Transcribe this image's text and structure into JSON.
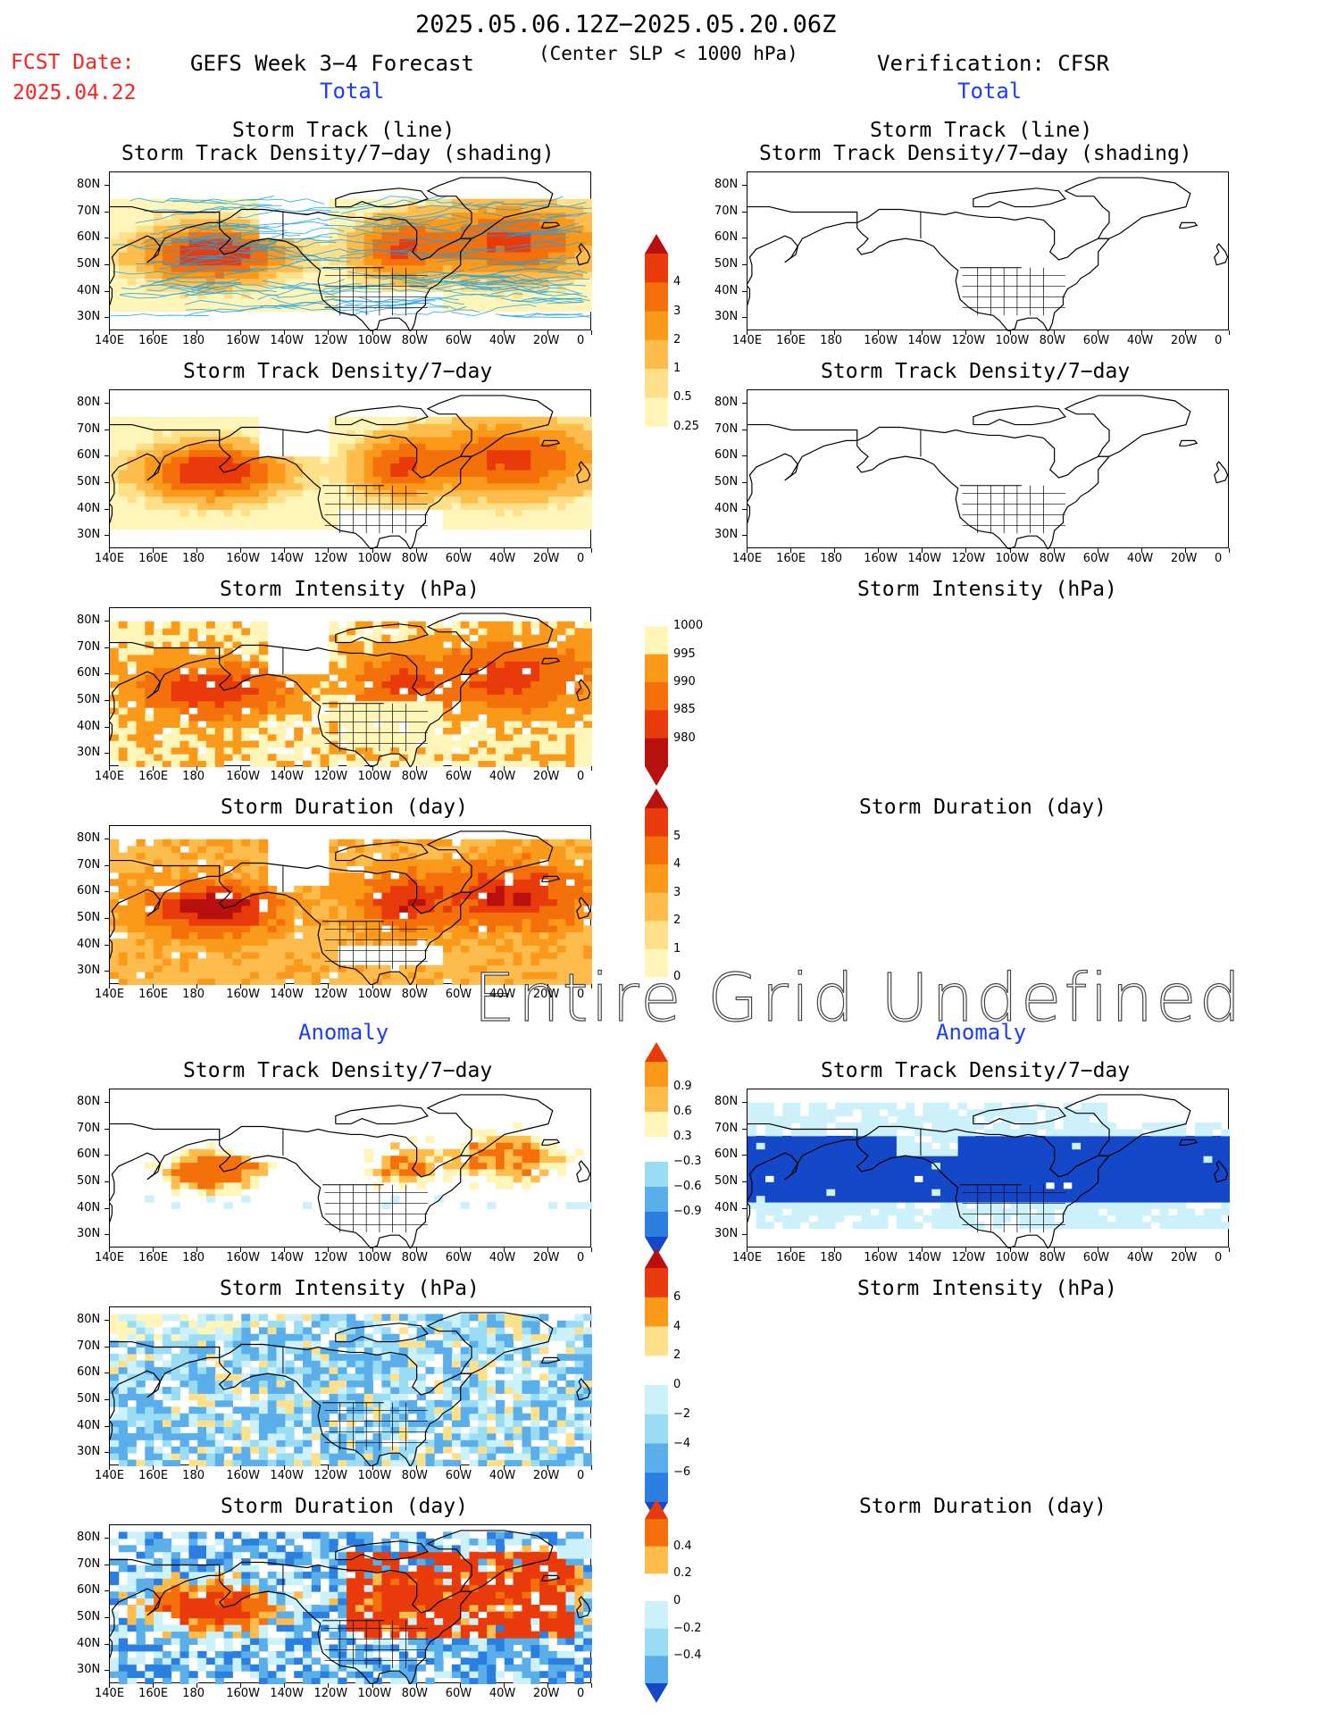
{
  "header": {
    "date_range": "2025.05.06.12Z−2025.05.20.06Z",
    "subtitle": "(Center SLP < 1000 hPa)",
    "fcst_label": "FCST Date:",
    "fcst_date": "2025.04.22",
    "left_title": "GEFS Week 3−4 Forecast",
    "right_title": "Verification: CFSR",
    "left_section": "Total",
    "right_section": "Total",
    "left_anom": "Anomaly",
    "right_anom": "Anomaly",
    "undefined_text": "Entire Grid Undefined"
  },
  "titles": {
    "track_line": "Storm Track (line)",
    "track_density_shading": "Storm Track Density/7−day (shading)",
    "track_density": "Storm Track Density/7−day",
    "intensity": "Storm Intensity (hPa)",
    "duration": "Storm Duration (day)"
  },
  "axes": {
    "ylabels": [
      "80N",
      "70N",
      "60N",
      "50N",
      "40N",
      "30N"
    ],
    "xlabels": [
      "140E",
      "160E",
      "180",
      "160W",
      "140W",
      "120W",
      "100W",
      "80W",
      "60W",
      "40W",
      "20W",
      "0"
    ]
  },
  "colorbars": {
    "density": [
      "4",
      "3",
      "2",
      "1",
      "0.5",
      "0.25"
    ],
    "intensity": [
      "1000",
      "995",
      "990",
      "985",
      "980"
    ],
    "duration": [
      "5",
      "4",
      "3",
      "2",
      "1",
      "0"
    ],
    "density_anom": [
      "0.9",
      "0.6",
      "0.3",
      "−0.3",
      "−0.6",
      "−0.9"
    ],
    "intensity_anom": [
      "6",
      "4",
      "2",
      "0",
      "−2",
      "−4",
      "−6"
    ],
    "duration_anom": [
      "0.4",
      "0.2",
      "0",
      "−0.2",
      "−0.4"
    ]
  },
  "colors": {
    "warm": [
      "#fff5b8",
      "#ffe08a",
      "#fdbc4c",
      "#fb9a1a",
      "#f4700a",
      "#e83a0a",
      "#b80f0f"
    ],
    "cool": [
      "#cdf1fb",
      "#9bdcf5",
      "#5aaeea",
      "#2b7fe0",
      "#1448c8"
    ],
    "track_line": "#1fa2e6"
  }
}
